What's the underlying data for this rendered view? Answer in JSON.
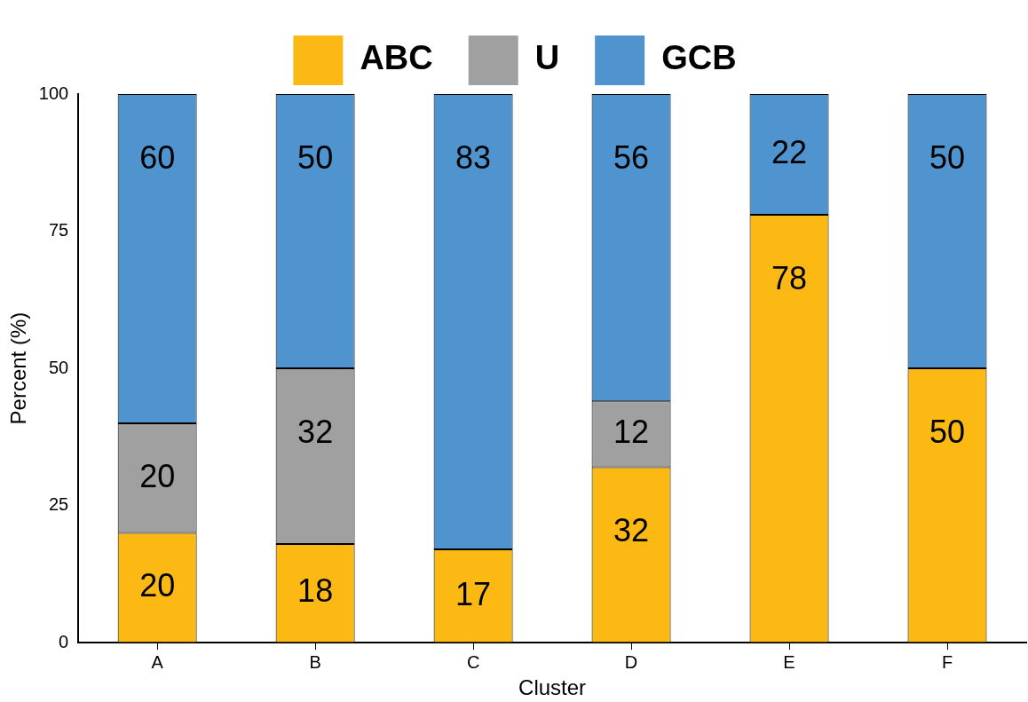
{
  "chart_data": {
    "type": "bar",
    "xlabel": "Cluster",
    "ylabel": "Percent (%)",
    "categories": [
      "A",
      "B",
      "C",
      "D",
      "E",
      "F"
    ],
    "series": [
      {
        "name": "ABC",
        "color": "#fdb913",
        "values": [
          20,
          18,
          17,
          32,
          78,
          50
        ]
      },
      {
        "name": "U",
        "color": "#a0a0a0",
        "values": [
          20,
          32,
          null,
          12,
          null,
          null
        ]
      },
      {
        "name": "GCB",
        "color": "#4f94cf",
        "values": [
          60,
          50,
          83,
          56,
          22,
          50
        ]
      }
    ],
    "stacked": true,
    "ylim": [
      0,
      100
    ],
    "yticks": [
      0,
      25,
      50,
      75,
      100
    ],
    "grid": false,
    "legend": "top",
    "data_labels": true
  }
}
